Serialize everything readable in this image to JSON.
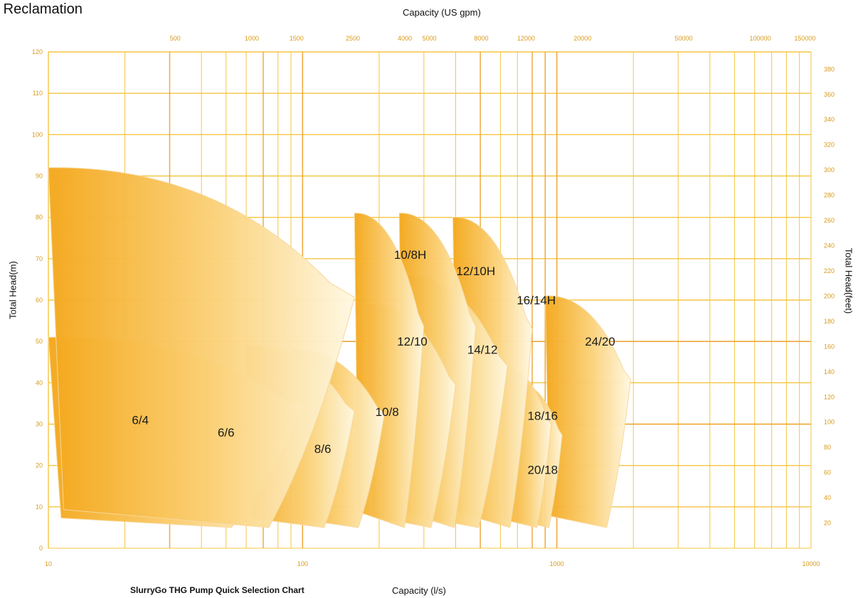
{
  "header": {
    "title": "d Reclamation"
  },
  "footer": {
    "caption": "SlurryGo THG Pump Quick Selection Chart"
  },
  "chart_data": {
    "type": "area",
    "title": "",
    "xlabel": "Capacity (l/s)",
    "x2label": "Capacity (US gpm)",
    "ylabel": "Total Head(m)",
    "y2label": "Total Head(feet)",
    "x_scale": "log",
    "xlim": [
      10,
      10000
    ],
    "ylim": [
      0,
      120
    ],
    "grid": true,
    "x_ticks": [
      "10",
      "100",
      "1000",
      "10000"
    ],
    "x2_ticks": [
      "500",
      "1000",
      "1500",
      "2500",
      "4000",
      "5000",
      "8000",
      "12000",
      "20000",
      "50000",
      "100000",
      "150000"
    ],
    "y_ticks": [
      "0",
      "10",
      "20",
      "30",
      "40",
      "50",
      "60",
      "70",
      "80",
      "90",
      "100",
      "110",
      "120"
    ],
    "y2_ticks": [
      "20",
      "40",
      "60",
      "80",
      "100",
      "120",
      "140",
      "160",
      "180",
      "200",
      "220",
      "240",
      "260",
      "280",
      "300",
      "320",
      "340",
      "360",
      "380"
    ],
    "colors": {
      "grid": "#f5c542",
      "grid_major": "#eea63a",
      "tick": "#d99a1a",
      "fill_dark": "#f4a81c",
      "fill_light": "#fff8e0"
    },
    "series": [
      {
        "name": "6/4",
        "q_range": [
          10,
          160
        ],
        "head_range": [
          5,
          92
        ],
        "label_at": [
          23,
          30
        ]
      },
      {
        "name": "6/6",
        "q_range": [
          10,
          100
        ],
        "head_range": [
          5,
          51
        ],
        "label_at": [
          50,
          27
        ]
      },
      {
        "name": "8/6",
        "q_range": [
          60,
          160
        ],
        "head_range": [
          5,
          49
        ],
        "label_at": [
          120,
          23
        ]
      },
      {
        "name": "10/8",
        "q_range": [
          90,
          210
        ],
        "head_range": [
          5,
          48
        ],
        "label_at": [
          215,
          32
        ]
      },
      {
        "name": "10/8H",
        "q_range": [
          160,
          300
        ],
        "head_range": [
          5,
          81
        ],
        "label_at": [
          265,
          70
        ]
      },
      {
        "name": "12/10",
        "q_range": [
          180,
          400
        ],
        "head_range": [
          5,
          59
        ],
        "label_at": [
          270,
          49
        ]
      },
      {
        "name": "12/10H",
        "q_range": [
          240,
          480
        ],
        "head_range": [
          5,
          81
        ],
        "label_at": [
          480,
          66
        ]
      },
      {
        "name": "14/12",
        "q_range": [
          250,
          640
        ],
        "head_range": [
          5,
          66
        ],
        "label_at": [
          510,
          47
        ]
      },
      {
        "name": "16/14H",
        "q_range": [
          390,
          800
        ],
        "head_range": [
          5,
          80
        ],
        "label_at": [
          830,
          59
        ]
      },
      {
        "name": "18/16",
        "q_range": [
          600,
          950
        ],
        "head_range": [
          5,
          44
        ],
        "label_at": [
          880,
          31
        ]
      },
      {
        "name": "20/18",
        "q_range": [
          680,
          1050
        ],
        "head_range": [
          5,
          40
        ],
        "label_at": [
          880,
          18
        ]
      },
      {
        "name": "24/20",
        "q_range": [
          900,
          1950
        ],
        "head_range": [
          5,
          61
        ],
        "label_at": [
          1480,
          49
        ]
      }
    ]
  }
}
